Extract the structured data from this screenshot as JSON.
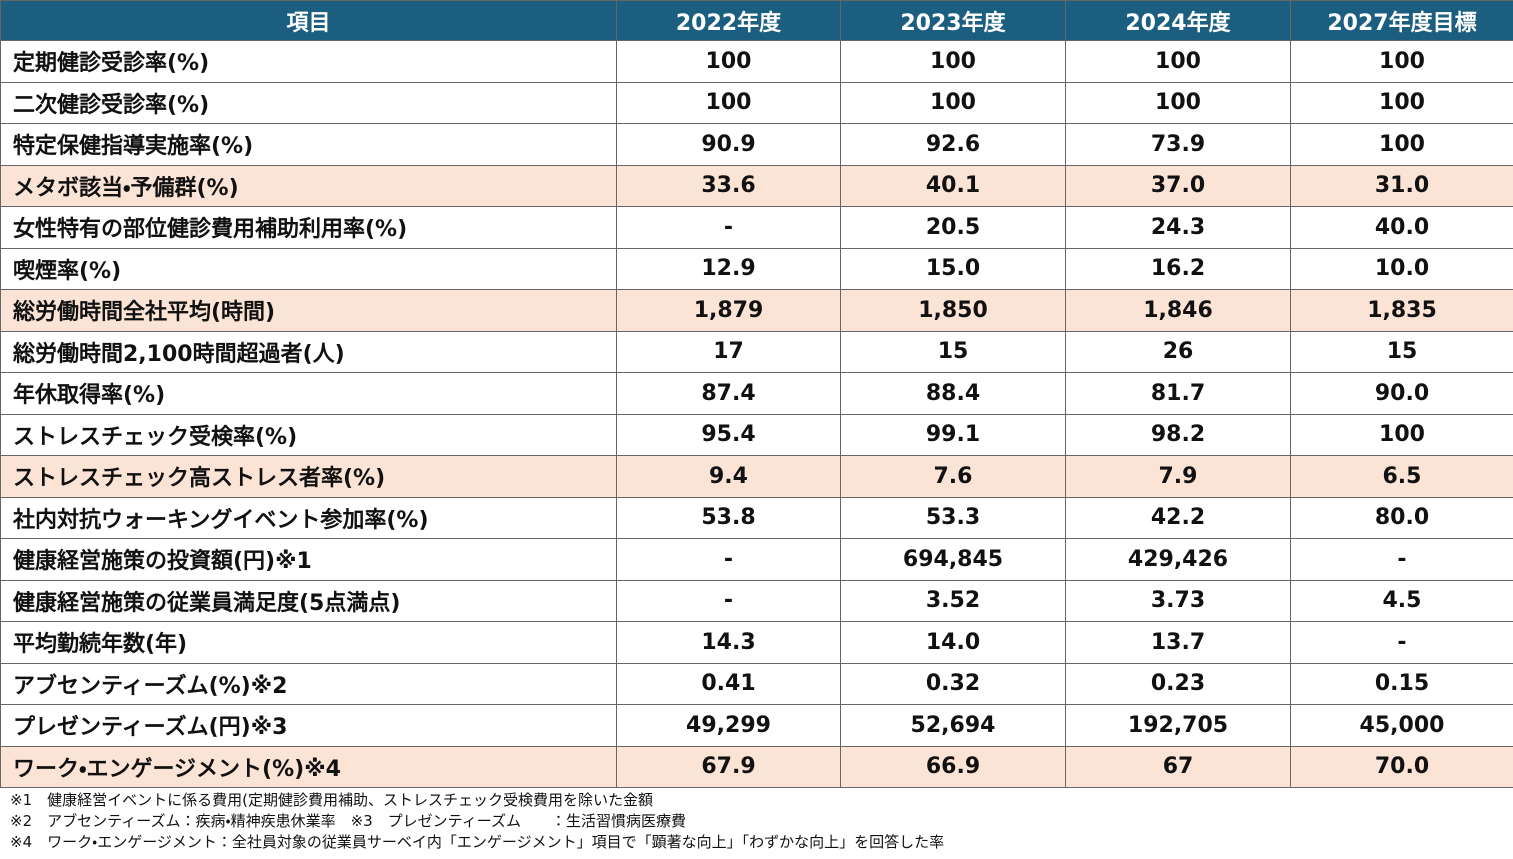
{
  "table": {
    "header": [
      "項目",
      "2022年度",
      "2023年度",
      "2024年度",
      "2027年度目標"
    ],
    "rows": [
      [
        "定期健診受診率(%)",
        "100",
        "100",
        "100",
        "100"
      ],
      [
        "二次健診受診率(%)",
        "100",
        "100",
        "100",
        "100"
      ],
      [
        "特定保健指導実施率(%)",
        "90.9",
        "92.6",
        "73.9",
        "100"
      ],
      [
        "メタボ該当・予備群(%)",
        "33.6",
        "40.1",
        "37.0",
        "31.0"
      ],
      [
        "女性特有の部位健診費用補助利用率(%)",
        "-",
        "20.5",
        "24.3",
        "40.0"
      ],
      [
        "喫煙率(%)",
        "12.9",
        "15.0",
        "16.2",
        "10.0"
      ],
      [
        "総労働時間全社平均(時間)",
        "1,879",
        "1,850",
        "1,846",
        "1,835"
      ],
      [
        "総労働時間2,100時間超過者(人)",
        "17",
        "15",
        "26",
        "15"
      ],
      [
        "年休取得率(%)",
        "87.4",
        "88.4",
        "81.7",
        "90.0"
      ],
      [
        "ストレスチェック受検率(%)",
        "95.4",
        "99.1",
        "98.2",
        "100"
      ],
      [
        "ストレスチェック高ストレス者率(%)",
        "9.4",
        "7.6",
        "7.9",
        "6.5"
      ],
      [
        "社内対抗ウォーキングイベント参加率(%)",
        "53.8",
        "53.3",
        "42.2",
        "80.0"
      ],
      [
        "健康経営施策の投資額(円)※1",
        "-",
        "694,845",
        "429,426",
        "-"
      ],
      [
        "健康経営施策の従業員満足度(5点満点)",
        "-",
        "3.52",
        "3.73",
        "4.5"
      ],
      [
        "平均勤続年数(年)",
        "14.3",
        "14.0",
        "13.7",
        "-"
      ],
      [
        "アブセンティーズム(%)※2",
        "0.41",
        "0.32",
        "0.23",
        "0.15"
      ],
      [
        "プレゼンティーズム(円)※3",
        "49,299",
        "52,694",
        "192,705",
        "45,000"
      ],
      [
        "ワーク・エンゲージメント(%)※4",
        "67.9",
        "66.9",
        "67",
        "70.0"
      ]
    ],
    "highlighted_rows": [
      3,
      6,
      10,
      17
    ],
    "header_color": "#1b5e80",
    "highlight_color": "#fbe3d6"
  },
  "notes": [
    "※1　健康経営イベントに係る費用(定期健診費用補助、ストレスチェック受検費用を除いた金額",
    "※2　アブセンティーズム：疾病・精神疾患休業率　※3　プレゼンティーズム　　：生活習慣病医療費",
    "※4　ワーク・エンゲージメント：全社員対象の従業員サーベイ内「エンゲージメント」項目で「顕著な向上」「わずかな向上」を回答した率"
  ]
}
